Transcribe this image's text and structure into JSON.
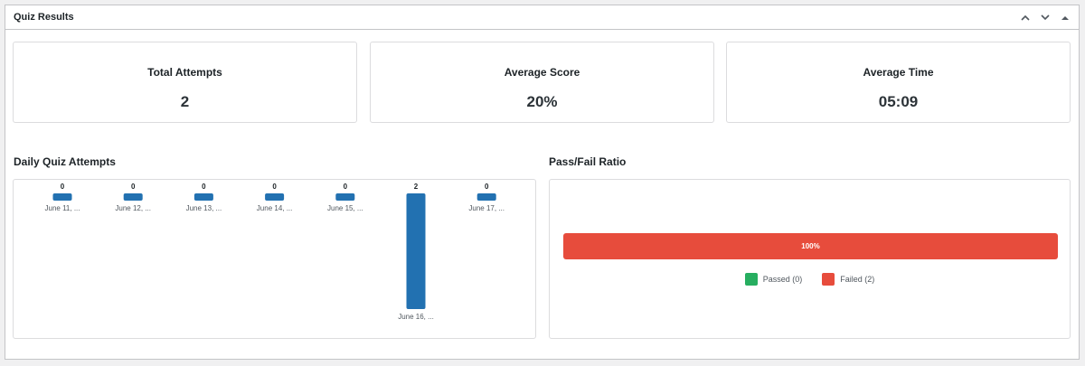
{
  "panel": {
    "title": "Quiz Results"
  },
  "stats": [
    {
      "label": "Total Attempts",
      "value": "2"
    },
    {
      "label": "Average Score",
      "value": "20%"
    },
    {
      "label": "Average Time",
      "value": "05:09"
    }
  ],
  "daily": {
    "title": "Daily Quiz Attempts"
  },
  "passfail": {
    "title": "Pass/Fail Ratio",
    "bar_label": "100%",
    "failed_fraction": 1.0,
    "legend": [
      {
        "label": "Passed (0)",
        "color": "#27ae60"
      },
      {
        "label": "Failed (2)",
        "color": "#e74c3c"
      }
    ]
  },
  "colors": {
    "bar": "#2271b1",
    "failed": "#e74c3c",
    "passed": "#27ae60"
  },
  "chart_data": {
    "type": "bar",
    "categories": [
      "June 11, ...",
      "June 12, ...",
      "June 13, ...",
      "June 14, ...",
      "June 15, ...",
      "June 16, ...",
      "June 17, ..."
    ],
    "values": [
      0,
      0,
      0,
      0,
      0,
      2,
      0
    ],
    "title": "Daily Quiz Attempts",
    "xlabel": "",
    "ylabel": "",
    "ylim": [
      0,
      2
    ],
    "grid": false,
    "legend": "none"
  }
}
